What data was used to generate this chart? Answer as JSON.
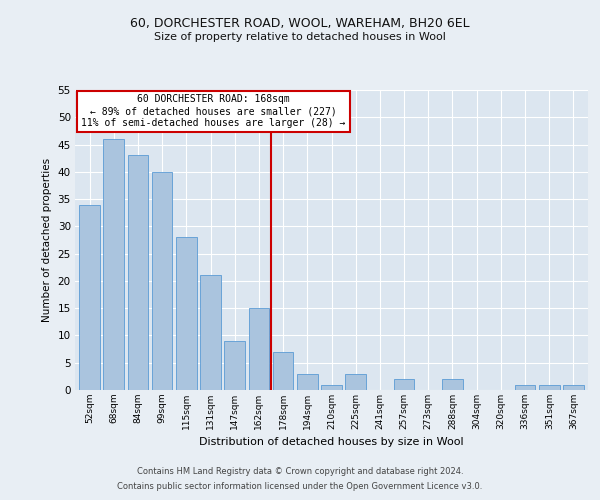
{
  "title1": "60, DORCHESTER ROAD, WOOL, WAREHAM, BH20 6EL",
  "title2": "Size of property relative to detached houses in Wool",
  "xlabel": "Distribution of detached houses by size in Wool",
  "ylabel": "Number of detached properties",
  "categories": [
    "52sqm",
    "68sqm",
    "84sqm",
    "99sqm",
    "115sqm",
    "131sqm",
    "147sqm",
    "162sqm",
    "178sqm",
    "194sqm",
    "210sqm",
    "225sqm",
    "241sqm",
    "257sqm",
    "273sqm",
    "288sqm",
    "304sqm",
    "320sqm",
    "336sqm",
    "351sqm",
    "367sqm"
  ],
  "values": [
    34,
    46,
    43,
    40,
    28,
    21,
    9,
    15,
    7,
    3,
    1,
    3,
    0,
    2,
    0,
    2,
    0,
    0,
    1,
    1,
    1
  ],
  "bar_color": "#aac4de",
  "bar_edge_color": "#5b9bd5",
  "vline_index": 7.5,
  "vline_color": "#cc0000",
  "annotation_title": "60 DORCHESTER ROAD: 168sqm",
  "annotation_line1": "← 89% of detached houses are smaller (227)",
  "annotation_line2": "11% of semi-detached houses are larger (28) →",
  "annotation_box_color": "#ffffff",
  "annotation_box_edge": "#cc0000",
  "footer1": "Contains HM Land Registry data © Crown copyright and database right 2024.",
  "footer2": "Contains public sector information licensed under the Open Government Licence v3.0.",
  "bg_color": "#e8eef4",
  "plot_bg_color": "#dce6f0",
  "ylim": [
    0,
    55
  ],
  "yticks": [
    0,
    5,
    10,
    15,
    20,
    25,
    30,
    35,
    40,
    45,
    50,
    55
  ]
}
